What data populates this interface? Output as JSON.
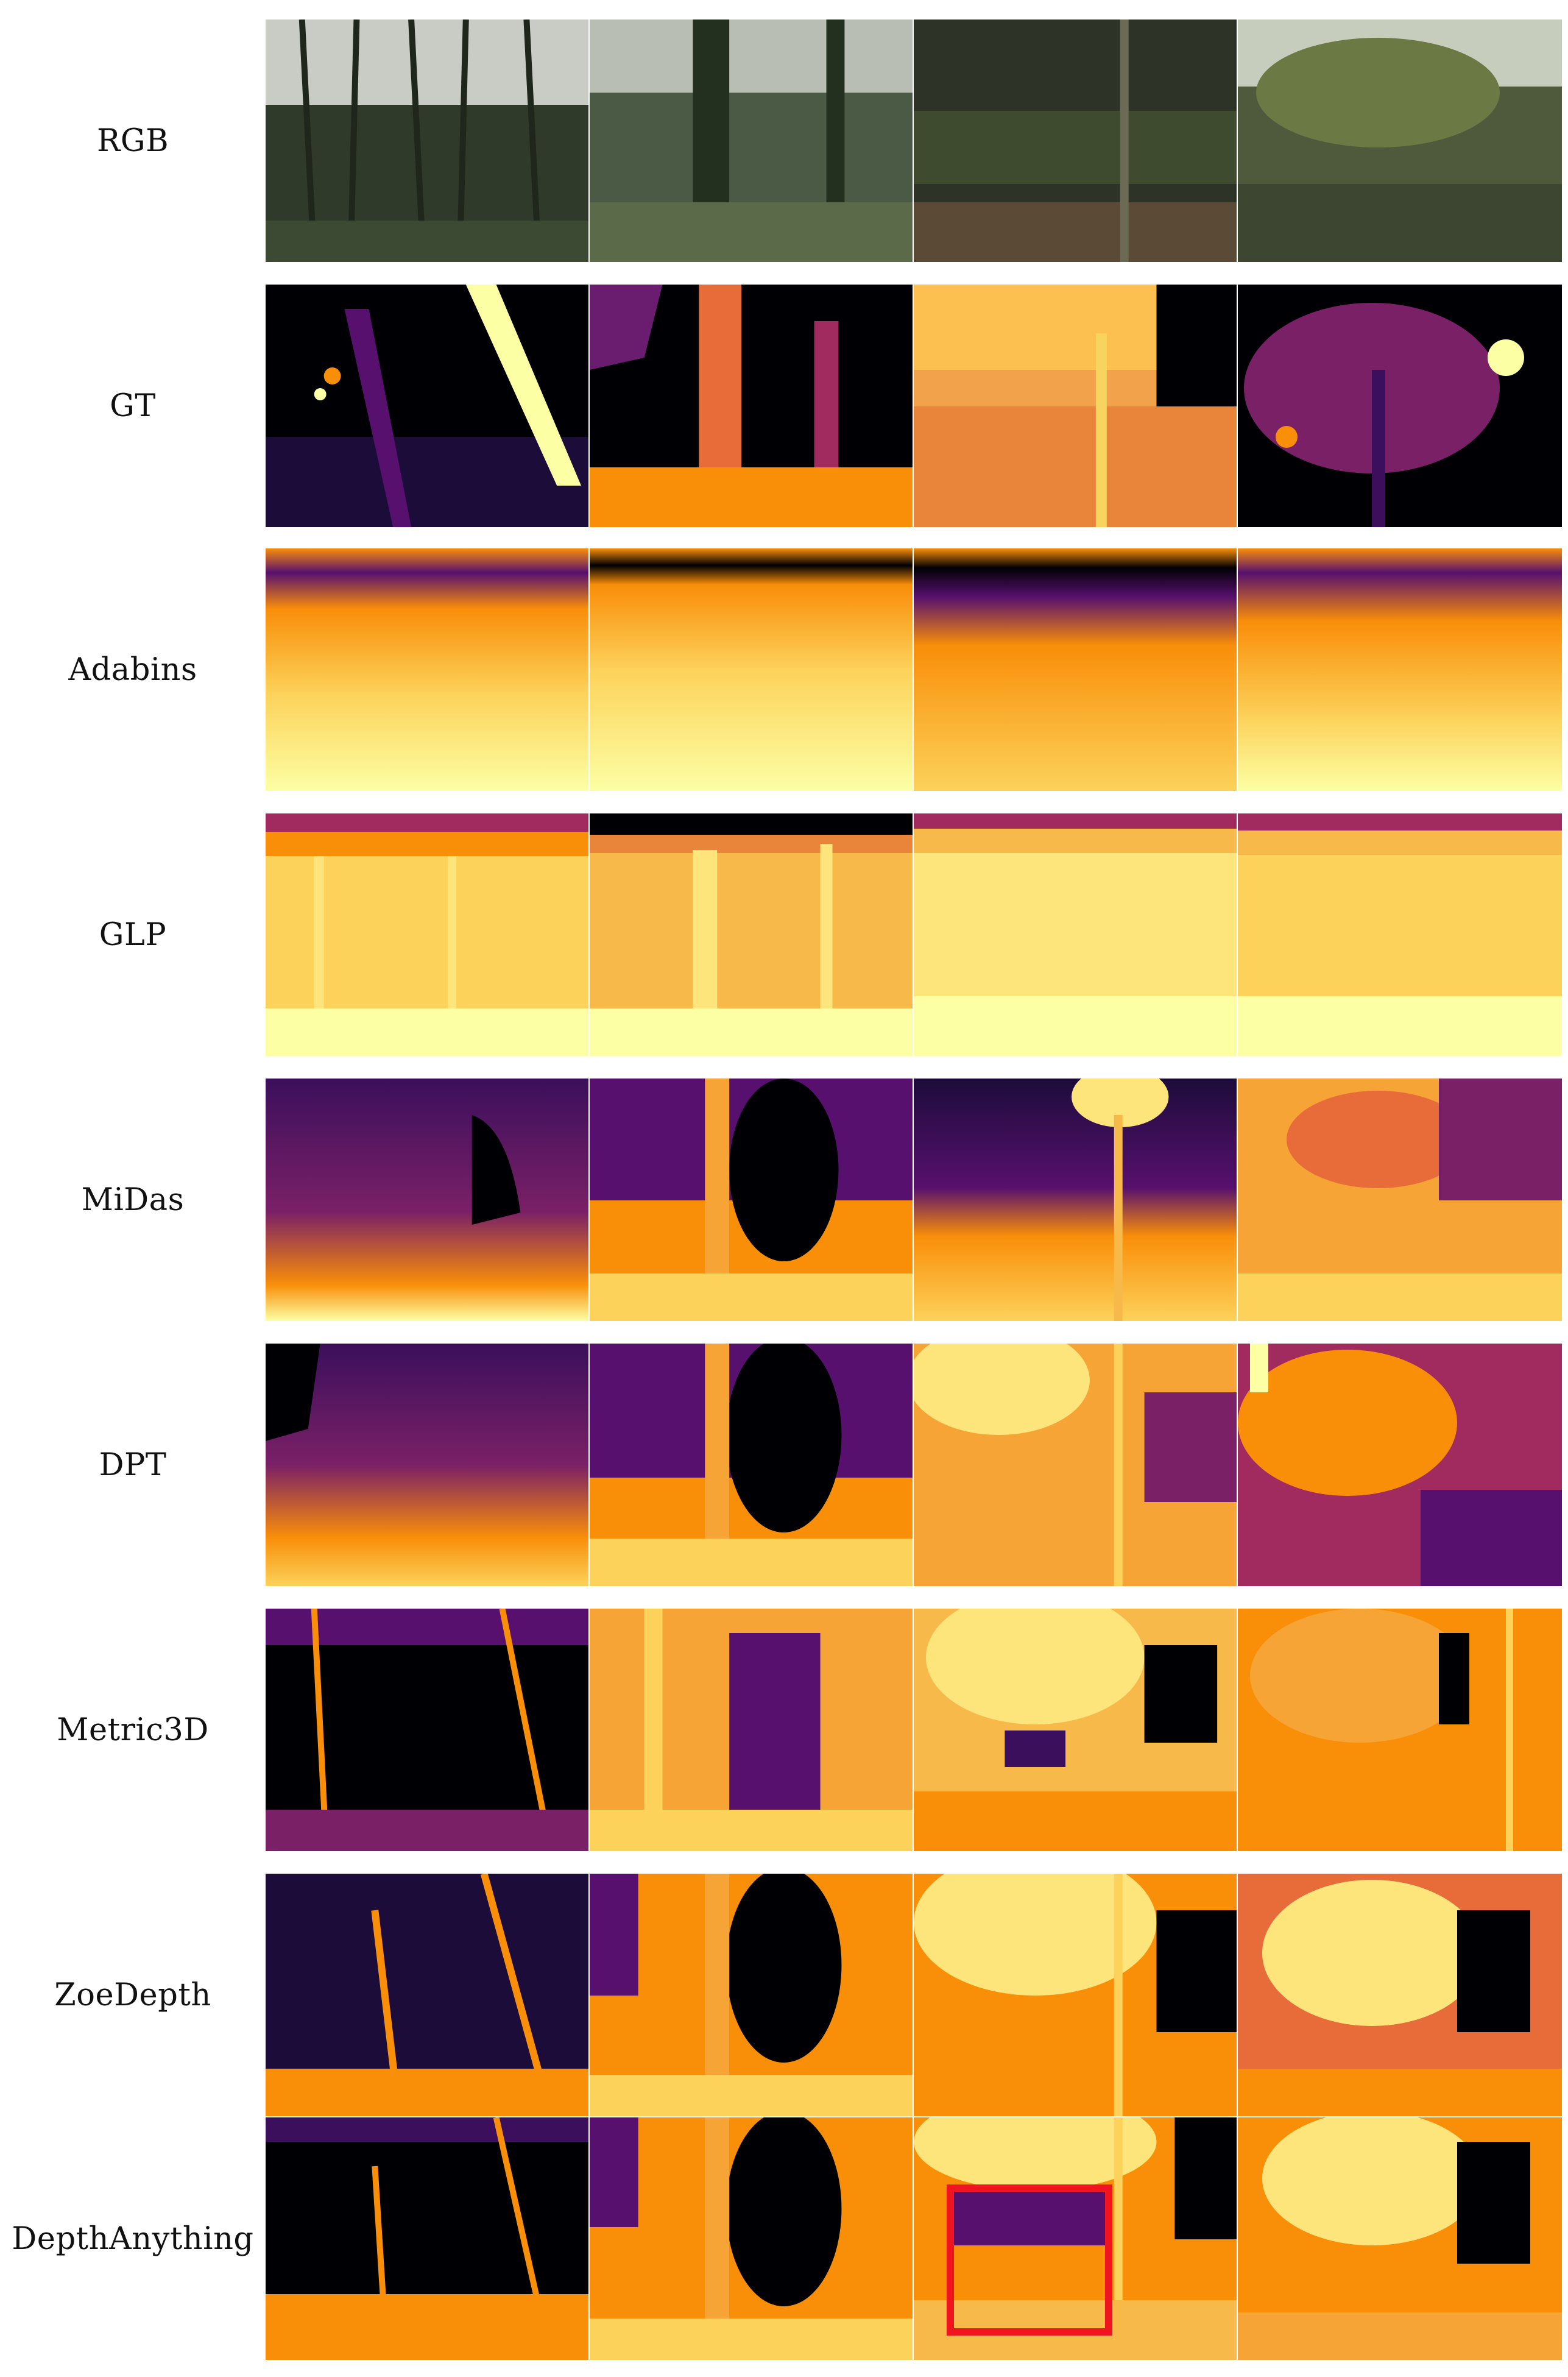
{
  "figure": {
    "rows": [
      {
        "label": "RGB",
        "style": "rgb"
      },
      {
        "label": "GT",
        "style": "gt"
      },
      {
        "label": "Adabins",
        "style": "adabins"
      },
      {
        "label": "GLP",
        "style": "glp"
      },
      {
        "label": "MiDas",
        "style": "midas"
      },
      {
        "label": "DPT",
        "style": "dpt"
      },
      {
        "label": "Metric3D",
        "style": "metric3d"
      },
      {
        "label": "ZoeDepth",
        "style": "zoedepth"
      },
      {
        "label": "DepthAnything",
        "style": "depthanything"
      }
    ],
    "scenes": [
      "scene-1",
      "scene-2",
      "scene-3",
      "scene-4"
    ],
    "highlight": {
      "row": "DepthAnything",
      "scene": "scene-3",
      "color": "#f0141e"
    },
    "colormap": {
      "near": "#fcffa4",
      "mid": "#f98e09",
      "far": "#57106e",
      "farthest": "#000004"
    }
  }
}
